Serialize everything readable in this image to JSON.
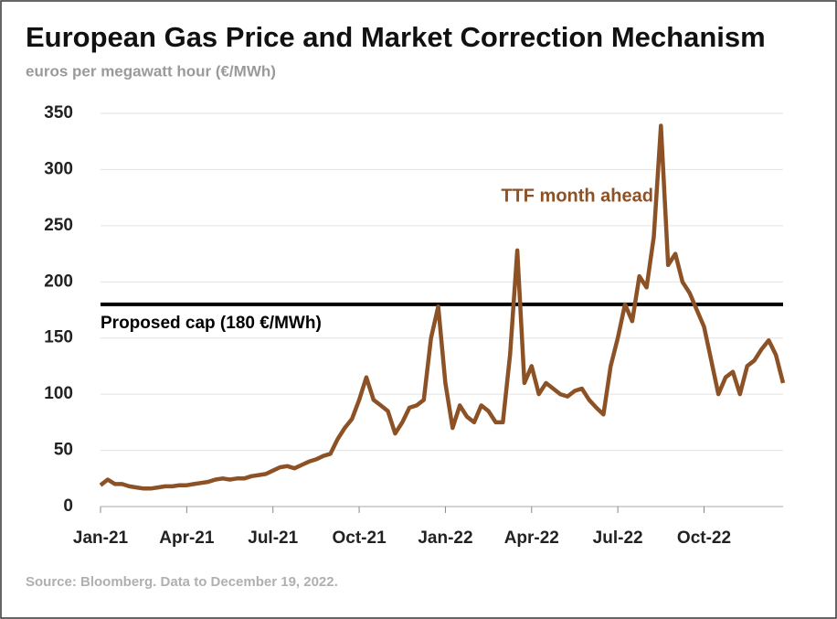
{
  "chart_data": {
    "type": "line",
    "title": "European Gas Price and Market Correction Mechanism",
    "subtitle": "euros per megawatt hour (€/MWh)",
    "source": "Source: Bloomberg. Data to December 19, 2022.",
    "x": [
      0,
      0.25,
      0.5,
      0.75,
      1,
      1.25,
      1.5,
      1.75,
      2,
      2.25,
      2.5,
      2.75,
      3,
      3.25,
      3.5,
      3.75,
      4,
      4.25,
      4.5,
      4.75,
      5,
      5.25,
      5.5,
      5.75,
      6,
      6.25,
      6.5,
      6.75,
      7,
      7.25,
      7.5,
      7.75,
      8,
      8.25,
      8.5,
      8.75,
      9,
      9.25,
      9.5,
      9.75,
      10,
      10.25,
      10.5,
      10.75,
      11,
      11.25,
      11.5,
      11.75,
      12,
      12.25,
      12.5,
      12.75,
      13,
      13.25,
      13.5,
      13.75,
      14,
      14.25,
      14.5,
      14.75,
      15,
      15.25,
      15.5,
      15.75,
      16,
      16.25,
      16.5,
      16.75,
      17,
      17.25,
      17.5,
      17.75,
      18,
      18.25,
      18.5,
      18.75,
      19,
      19.25,
      19.5,
      19.75,
      20,
      20.25,
      20.5,
      20.75,
      21,
      21.25,
      21.5,
      21.75,
      22,
      22.25,
      22.5,
      22.75,
      23,
      23.25,
      23.5,
      23.75
    ],
    "series": [
      {
        "name": "TTF month ahead",
        "color": "#8c5226",
        "values": [
          19,
          24,
          20,
          20,
          18,
          17,
          16,
          16,
          17,
          18,
          18,
          19,
          19,
          20,
          21,
          22,
          24,
          25,
          24,
          25,
          25,
          27,
          28,
          29,
          32,
          35,
          36,
          34,
          37,
          40,
          42,
          45,
          47,
          60,
          70,
          78,
          95,
          115,
          95,
          90,
          85,
          65,
          75,
          88,
          90,
          95,
          150,
          178,
          110,
          70,
          90,
          80,
          75,
          90,
          85,
          75,
          75,
          135,
          228,
          110,
          125,
          100,
          110,
          105,
          100,
          98,
          103,
          105,
          95,
          88,
          82,
          125,
          150,
          180,
          165,
          205,
          195,
          240,
          339,
          215,
          225,
          200,
          190,
          175,
          160,
          130,
          100,
          115,
          120,
          100,
          125,
          130,
          140,
          148,
          135,
          110
        ]
      }
    ],
    "cap": {
      "value": 180,
      "label": "Proposed cap (180 €/MWh)"
    },
    "xlim": [
      0,
      23.75
    ],
    "xticks": [
      {
        "value": 0,
        "label": "Jan-21"
      },
      {
        "value": 3,
        "label": "Apr-21"
      },
      {
        "value": 6,
        "label": "Jul-21"
      },
      {
        "value": 9,
        "label": "Oct-21"
      },
      {
        "value": 12,
        "label": "Jan-22"
      },
      {
        "value": 15,
        "label": "Apr-22"
      },
      {
        "value": 18,
        "label": "Jul-22"
      },
      {
        "value": 21,
        "label": "Oct-22"
      }
    ],
    "ylim": [
      0,
      350
    ],
    "yticks": [
      0,
      50,
      100,
      150,
      200,
      250,
      300,
      350
    ],
    "grid": true
  }
}
